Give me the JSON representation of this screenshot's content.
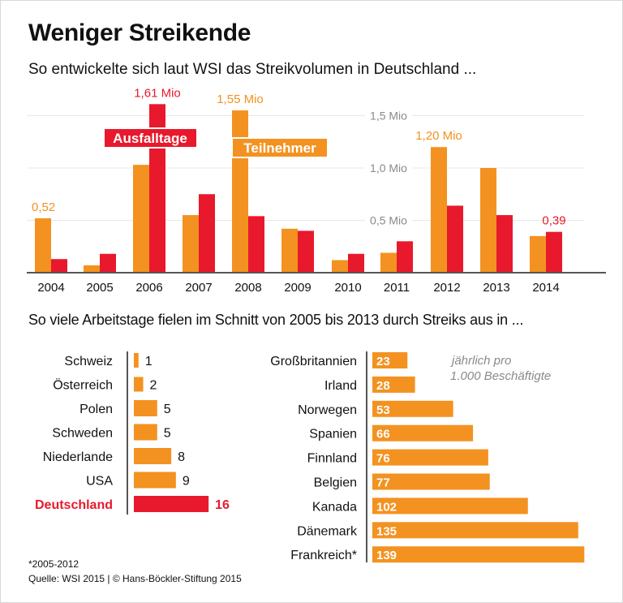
{
  "title": "Weniger Streikende",
  "subtitle_top": "So entwickelte sich laut WSI das Streikvolumen in Deutschland ...",
  "subtitle_bottom": "So viele Arbeitstage fielen im Schnitt von 2005 bis 2013 durch Streiks aus in ...",
  "footnote": "*2005-2012",
  "source": "Quelle: WSI 2015 | © Hans-Böckler-Stiftung 2015",
  "colors": {
    "orange": "#f39220",
    "red": "#e8192c",
    "grid": "#e8e8e8",
    "axis": "#555555",
    "gray_text": "#8a8a8a"
  },
  "chart_data": [
    {
      "type": "bar",
      "title": "So entwickelte sich laut WSI das Streikvolumen in Deutschland ...",
      "xlabel": "",
      "ylabel": "",
      "ylim": [
        0,
        1.6
      ],
      "y_ticks": [
        {
          "value": 0.5,
          "label": "0,5 Mio"
        },
        {
          "value": 1.0,
          "label": "1,0 Mio"
        },
        {
          "value": 1.5,
          "label": "1,5 Mio"
        }
      ],
      "grid": true,
      "categories": [
        "2004",
        "2005",
        "2006",
        "2007",
        "2008",
        "2009",
        "2010",
        "2011",
        "2012",
        "2013",
        "2014"
      ],
      "series": [
        {
          "name": "Teilnehmer",
          "color": "#f39220",
          "values": [
            0.52,
            0.07,
            1.03,
            0.55,
            1.55,
            0.42,
            0.12,
            0.19,
            1.2,
            1.0,
            0.35
          ]
        },
        {
          "name": "Ausfalltage",
          "color": "#e8192c",
          "values": [
            0.13,
            0.18,
            1.61,
            0.75,
            0.54,
            0.4,
            0.18,
            0.3,
            0.64,
            0.55,
            0.39
          ]
        }
      ],
      "legend": [
        {
          "label": "Ausfalltage",
          "color": "#e8192c",
          "placement": "top-left"
        },
        {
          "label": "Teilnehmer",
          "color": "#f39220",
          "placement": "top-center"
        }
      ],
      "annotations": [
        {
          "category": "2004",
          "series": "Teilnehmer",
          "text": "0,52"
        },
        {
          "category": "2006",
          "series": "Ausfalltage",
          "text": "1,61 Mio"
        },
        {
          "category": "2008",
          "series": "Teilnehmer",
          "text": "1,55 Mio"
        },
        {
          "category": "2012",
          "series": "Teilnehmer",
          "text": "1,20 Mio"
        },
        {
          "category": "2014",
          "series": "Ausfalltage",
          "text": "0,39"
        }
      ]
    },
    {
      "type": "bar",
      "orientation": "horizontal",
      "title": "Arbeitstage je 1.000 Beschäftigte (links)",
      "categories": [
        "Schweiz",
        "Österreich",
        "Polen",
        "Schweden",
        "Niederlande",
        "USA",
        "Deutschland"
      ],
      "values": [
        1,
        2,
        5,
        5,
        8,
        9,
        16
      ],
      "highlight": "Deutschland"
    },
    {
      "type": "bar",
      "orientation": "horizontal",
      "title": "Arbeitstage je 1.000 Beschäftigte (rechts)",
      "note": [
        "jährlich pro",
        "1.000 Beschäftigte"
      ],
      "categories": [
        "Großbritannien",
        "Irland",
        "Norwegen",
        "Spanien",
        "Finnland",
        "Belgien",
        "Kanada",
        "Dänemark",
        "Frankreich*"
      ],
      "values": [
        23,
        28,
        53,
        66,
        76,
        77,
        102,
        135,
        139
      ]
    }
  ]
}
